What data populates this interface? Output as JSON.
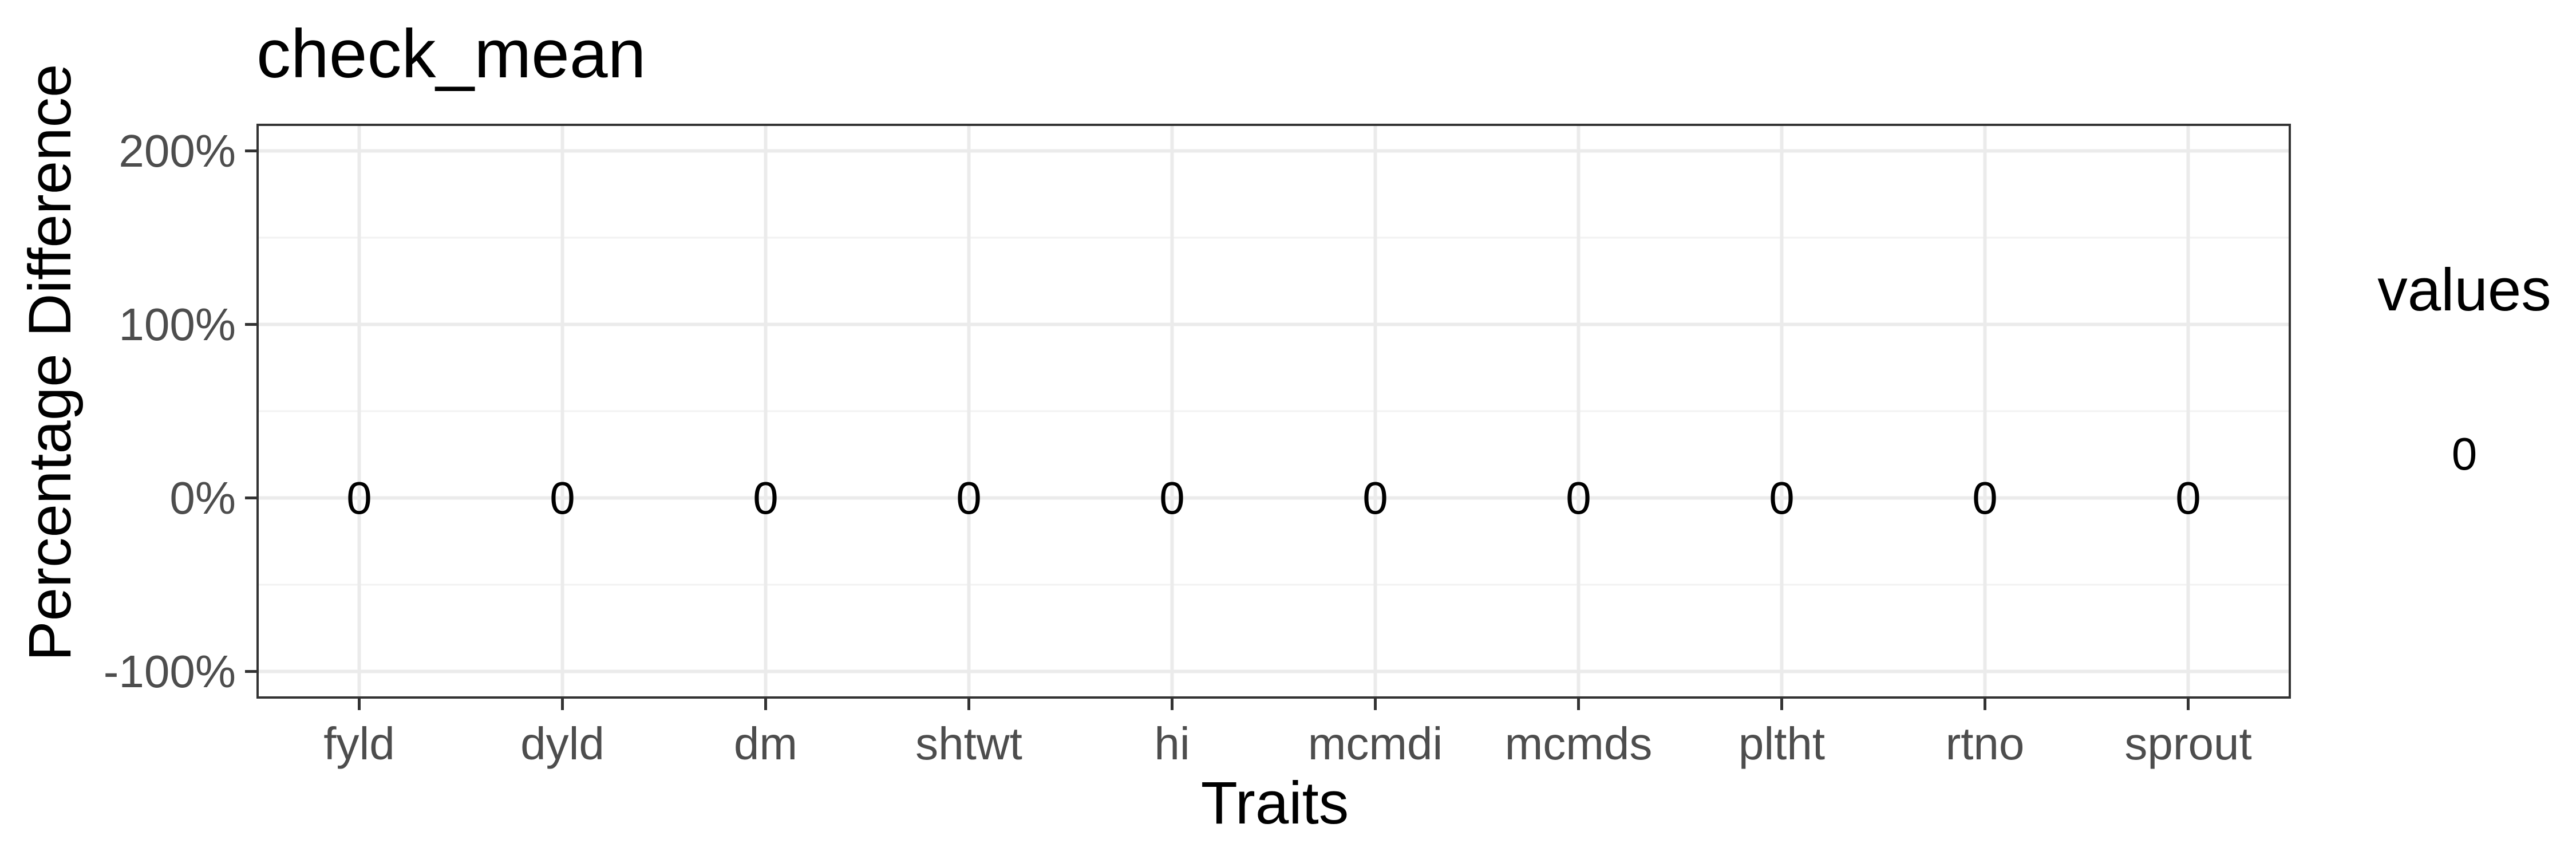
{
  "chart_data": {
    "type": "bar",
    "title": "check_mean",
    "xlabel": "Traits",
    "ylabel": "Percentage Difference",
    "categories": [
      "fyld",
      "dyld",
      "dm",
      "shtwt",
      "hi",
      "mcmdi",
      "mcmds",
      "pltht",
      "rtno",
      "sprout"
    ],
    "series": [
      {
        "values": [
          0,
          0,
          0,
          0,
          0,
          0,
          0,
          0,
          0,
          0
        ]
      }
    ],
    "data_labels": [
      "0",
      "0",
      "0",
      "0",
      "0",
      "0",
      "0",
      "0",
      "0",
      "0"
    ],
    "y_ticks": [
      -1,
      0,
      1,
      2
    ],
    "y_tick_labels": [
      "-100%",
      "0%",
      "100%",
      "200%"
    ],
    "ylim": [
      -1.15,
      2.15
    ],
    "grid": true,
    "legend": {
      "title": "values",
      "entries": [
        "0"
      ],
      "placement": "right"
    },
    "colors": {
      "panel_border": "#333333",
      "grid_major": "#ebebeb",
      "grid_minor": "#f2f2f2",
      "bar_outline": "#b3b3b3",
      "tick_text": "#4d4d4d"
    }
  }
}
